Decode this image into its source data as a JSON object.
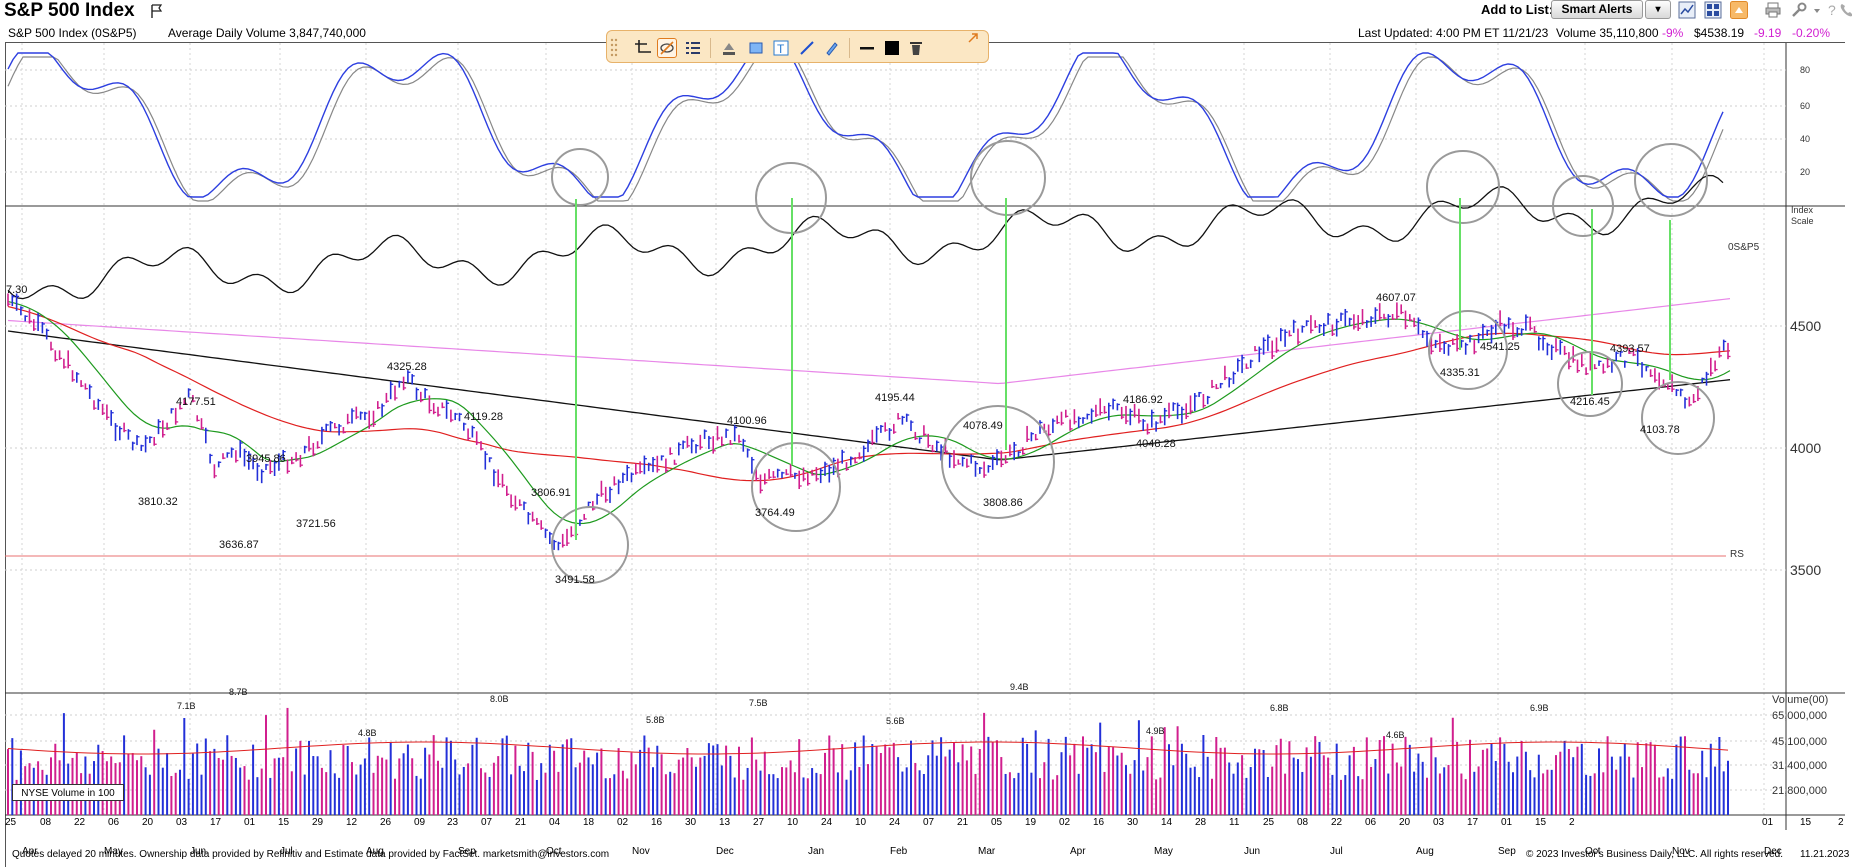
{
  "header": {
    "title": "S&P 500 Index",
    "add_to_list_label": "Add to List:",
    "smart_alerts_label": "Smart Alerts",
    "dropdown_glyph": "▾"
  },
  "infobar": {
    "symbol": "S&P 500 Index   (0S&P5)",
    "avg_volume": "Average Daily Volume 3,847,740,000",
    "last_updated": "Last Updated: 4:00 PM ET 11/21/23",
    "volume": "Volume 35,110,800",
    "volume_change": "-9%",
    "price": "$4538.19",
    "change": "-9.19",
    "change_pct": "-0.20%"
  },
  "colors": {
    "accent_orange": "#e07b1e",
    "negative": "#d11fd1",
    "up_bar": "#2330d8",
    "down_bar": "#d11f8e",
    "ma_green": "#1e9a1e",
    "ma_red": "#e02020",
    "ma_pink": "#e887e8",
    "ma_black": "#111111",
    "marker_green": "#66e066",
    "circle_gray": "#9a9a9a"
  },
  "stochastic_axis": [
    "80",
    "60",
    "40",
    "20"
  ],
  "index_scale_label": "Index\nScale",
  "relative_strength_symbol": "0S&P5",
  "price_axis": [
    "4500",
    "4000",
    "3500"
  ],
  "rs_label": "RS",
  "price_notes": [
    {
      "text": "7.30"
    },
    {
      "text": "4177.51"
    },
    {
      "text": "3810.32"
    },
    {
      "text": "3945.86"
    },
    {
      "text": "3636.87"
    },
    {
      "text": "3721.56"
    },
    {
      "text": "4325.28"
    },
    {
      "text": "4119.28"
    },
    {
      "text": "3806.91"
    },
    {
      "text": "3491.58"
    },
    {
      "text": "4100.96"
    },
    {
      "text": "3764.49"
    },
    {
      "text": "4195.44"
    },
    {
      "text": "4078.49"
    },
    {
      "text": "3808.86"
    },
    {
      "text": "4186.92"
    },
    {
      "text": "4048.28"
    },
    {
      "text": "4607.07"
    },
    {
      "text": "4541.25"
    },
    {
      "text": "4335.31"
    },
    {
      "text": "4393.57"
    },
    {
      "text": "4216.45"
    },
    {
      "text": "4103.78"
    }
  ],
  "volume_axis": {
    "title": "Volume(00)",
    "ticks": [
      "65,000,000",
      "45,100,000",
      "31,400,000",
      "21,800,000"
    ]
  },
  "volume_notes": [
    "7.1B",
    "8.7B",
    "4.8B",
    "8.0B",
    "5.8B",
    "7.5B",
    "5.6B",
    "9.4B",
    "4.9B",
    "6.8B",
    "4.6B",
    "6.9B"
  ],
  "nyse_volume_legend": "NYSE Volume in 100",
  "x_days": [
    "25",
    "08",
    "22",
    "06",
    "20",
    "03",
    "17",
    "01",
    "15",
    "29",
    "12",
    "26",
    "09",
    "23",
    "07",
    "21",
    "04",
    "18",
    "02",
    "16",
    "30",
    "13",
    "27",
    "10",
    "24",
    "10",
    "24",
    "07",
    "21",
    "05",
    "19",
    "02",
    "16",
    "30",
    "14",
    "28",
    "11",
    "25",
    "08",
    "22",
    "06",
    "20",
    "03",
    "17",
    "01",
    "15",
    "2"
  ],
  "x_months": [
    "Apr",
    "May",
    "Jun",
    "Jul",
    "Aug",
    "Sep",
    "Oct",
    "Nov",
    "Dec",
    "Jan",
    "Feb",
    "Mar",
    "Apr",
    "May",
    "Jun",
    "Jul",
    "Aug",
    "Sep",
    "Oct",
    "Nov",
    "Dec"
  ],
  "footer": {
    "left": "Quotes delayed 20 minutes. Ownership data provided by Refinitiv and Estimate data provided by FactSet. marketsmith@investors.com",
    "right": "© 2023 Investor's Business Daily, LLC. All rights reserved.",
    "date": "11.21.2023"
  },
  "drawing_tools": [
    "crosshair-icon",
    "hide-annotations-icon",
    "list-icon",
    "pen-fill-icon",
    "rectangle-icon",
    "text-tool-icon",
    "line-tool-icon",
    "highlighter-icon",
    "line-weight-icon",
    "color-swatch-icon",
    "trash-icon",
    "collapse-icon"
  ]
}
